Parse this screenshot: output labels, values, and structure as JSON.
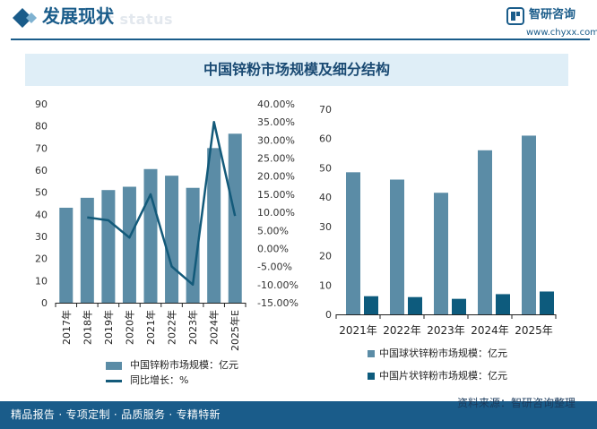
{
  "header": {
    "title": "发展现状",
    "bg_text": "ent status",
    "logo_name": "智研咨询",
    "logo_url": "www.chyxx.com"
  },
  "banner_title": "中国锌粉市场规模及细分结构",
  "footer": {
    "left": "精品报告 · 专项定制 · 品质服务 · 专精特新",
    "source": "资料来源：智研咨询整理"
  },
  "colors": {
    "bar": "#5b8ca6",
    "line": "#135a7a",
    "dark_bar": "#0d5b7d",
    "brand": "#1a5c8a"
  },
  "chart_data": [
    {
      "type": "bar+line",
      "categories": [
        "2017年",
        "2018年",
        "2019年",
        "2020年",
        "2021年",
        "2022年",
        "2023年",
        "2024年",
        "2025年E"
      ],
      "series": [
        {
          "name": "中国锌粉市场规模：亿元",
          "type": "bar",
          "axis": "left",
          "values": [
            43,
            47.5,
            51,
            52.5,
            60.5,
            57.5,
            52,
            70,
            76.5
          ]
        },
        {
          "name": "同比增长：%",
          "type": "line",
          "axis": "right",
          "values": [
            null,
            8.6,
            7.8,
            3.0,
            15.0,
            -5.0,
            -10.0,
            35.0,
            9.0
          ]
        }
      ],
      "yticks_left": [
        "0",
        "10",
        "20",
        "30",
        "40",
        "50",
        "60",
        "70",
        "80",
        "90"
      ],
      "ylim_left": [
        0,
        90
      ],
      "yticks_right": [
        "-15.00%",
        "-10.00%",
        "-5.00%",
        "0.00%",
        "5.00%",
        "10.00%",
        "15.00%",
        "20.00%",
        "25.00%",
        "30.00%",
        "35.00%",
        "40.00%"
      ],
      "ylim_right": [
        -15,
        40
      ],
      "legend": [
        "中国锌粉市场规模：亿元",
        "同比增长：%"
      ]
    },
    {
      "type": "bar",
      "categories": [
        "2021年",
        "2022年",
        "2023年",
        "2024年",
        "2025年"
      ],
      "series": [
        {
          "name": "中国球状锌粉市场规模：亿元",
          "values": [
            48.5,
            46,
            41.5,
            56,
            61
          ]
        },
        {
          "name": "中国片状锌粉市场规模：亿元",
          "values": [
            6.2,
            5.9,
            5.3,
            6.9,
            7.8
          ]
        }
      ],
      "yticks": [
        "0",
        "10",
        "20",
        "30",
        "40",
        "50",
        "60",
        "70"
      ],
      "ylim": [
        0,
        70
      ],
      "legend": [
        "中国球状锌粉市场规模：亿元",
        "中国片状锌粉市场规模：亿元"
      ]
    }
  ]
}
